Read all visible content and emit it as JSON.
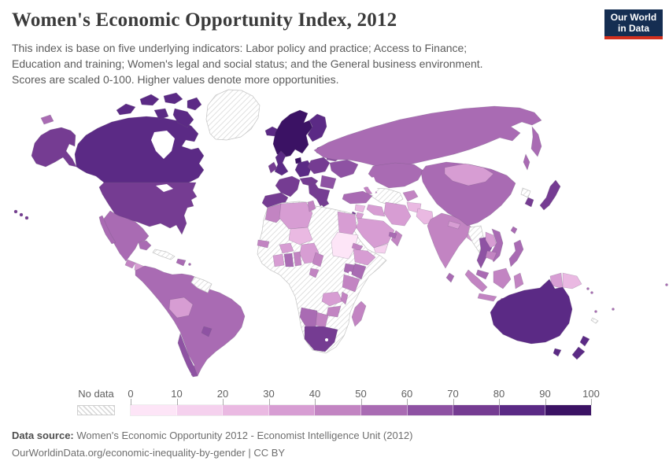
{
  "header": {
    "title": "Women's Economic Opportunity Index, 2012",
    "subtitle": "This index is base on five underlying indicators: Labor policy and practice; Access to Finance; Education and training; Women's legal and social status; and the General business environment. Scores are scaled 0-100. Higher values denote more opportunities.",
    "logo": {
      "line1": "Our World",
      "line2": "in Data",
      "bg_color": "#152e52",
      "stripe_color": "#d3301e"
    }
  },
  "legend": {
    "no_data_label": "No data",
    "tick_labels": [
      "0",
      "10",
      "20",
      "30",
      "40",
      "50",
      "60",
      "70",
      "80",
      "90",
      "100"
    ]
  },
  "chart_data": {
    "type": "choropleth",
    "title": "Women's Economic Opportunity Index, 2012",
    "unit": "index score, scaled 0-100",
    "axis_range": [
      0,
      100
    ],
    "legend_bins": [
      {
        "range": "0-10",
        "color": "#fde5f7"
      },
      {
        "range": "10-20",
        "color": "#f5d1ee"
      },
      {
        "range": "20-30",
        "color": "#eab9e2"
      },
      {
        "range": "30-40",
        "color": "#d79dd3"
      },
      {
        "range": "40-50",
        "color": "#c284c2"
      },
      {
        "range": "50-60",
        "color": "#a96bb3"
      },
      {
        "range": "60-70",
        "color": "#8e52a3"
      },
      {
        "range": "70-80",
        "color": "#753c92"
      },
      {
        "range": "80-90",
        "color": "#5b2a85"
      },
      {
        "range": "90-100",
        "color": "#3b1264"
      }
    ],
    "no_data": {
      "label": "No data",
      "hatch_color": "#d8d8d8"
    },
    "regions": {
      "canada": "80-90",
      "usa": "70-80",
      "alaska": "70-80",
      "hawaii": "70-80",
      "st-lawrence-island": "50-60",
      "mexico": "50-60",
      "guatemala": "40-50",
      "honduras-nicaragua": "30-40",
      "costa-rica-panama": "50-60",
      "cuba": "no-data",
      "hispaniola": "50-60",
      "lesser-antilles": "50-60",
      "greenland": "no-data",
      "iceland": "80-90",
      "south-america": "50-60",
      "bolivia": "30-40",
      "guyanas": "no-data",
      "uruguay": "60-70",
      "chile": "60-70",
      "norway-sweden": "90-100",
      "finland": "80-90",
      "denmark": "90-100",
      "uk": "80-90",
      "ireland": "70-80",
      "germany": "80-90",
      "france": "70-80",
      "iberia": "70-80",
      "italy": "70-80",
      "alpine": "70-80",
      "poland-czech": "70-80",
      "baltics": "70-80",
      "belarus": "60-70",
      "ukraine": "60-70",
      "romania-bulgaria": "60-70",
      "balkans-greece": "70-80",
      "russia": "50-60",
      "kazakhstan": "50-60",
      "uzbek-turkmen": "no-data",
      "kyrgyz-tajik": "40-50",
      "caucasus": "40-50",
      "turkey": "50-60",
      "syria": "20-30",
      "israel": "70-80",
      "jordan": "30-40",
      "iraq": "30-40",
      "iran": "30-40",
      "saudi-arabia": "30-40",
      "yemen": "10-20",
      "oman": "40-50",
      "uae": "50-60",
      "afghanistan": "20-30",
      "pakistan": "20-30",
      "india": "40-50",
      "nepal": "30-40",
      "bangladesh": "30-40",
      "sri-lanka": "50-60",
      "china": "50-60",
      "mongolia": "30-40",
      "taiwan": "50-60",
      "japan": "70-80",
      "south-korea": "70-80",
      "north-korea": "no-data",
      "myanmar": "no-data",
      "thailand": "60-70",
      "laos": "30-40",
      "vietnam": "50-60",
      "cambodia": "40-50",
      "malaysia": "50-60",
      "indonesia": "40-50",
      "philippines": "50-60",
      "new-guinea-west": "30-40",
      "papua-new-guinea": "20-30",
      "pacific-islands": "50-60",
      "new-caledonia": "no-data",
      "australia": "80-90",
      "new-zealand": "80-90",
      "africa-nodata-interior": "no-data",
      "morocco": "40-50",
      "algeria": "30-40",
      "tunisia": "40-50",
      "egypt": "30-40",
      "sudan": "0-10",
      "niger": "20-30",
      "senegal": "40-50",
      "burkina-faso": "30-40",
      "ivory-coast": "30-40",
      "ghana": "50-60",
      "togo-benin": "40-50",
      "nigeria": "30-40",
      "cameroon": "40-50",
      "gabon": "40-50",
      "eritrea": "40-50",
      "ethiopia": "30-40",
      "uganda": "50-60",
      "kenya": "50-60",
      "tanzania": "40-50",
      "zambia": "30-40",
      "malawi": "40-50",
      "zimbabwe": "40-50",
      "botswana": "40-50",
      "namibia": "50-60",
      "south-africa": "70-80",
      "madagascar": "40-50"
    }
  },
  "footer": {
    "source_label": "Data source:",
    "source_text": " Women's Economic Opportunity 2012 - Economist Intelligence Unit (2012)",
    "note": "OurWorldinData.org/economic-inequality-by-gender | CC BY"
  }
}
